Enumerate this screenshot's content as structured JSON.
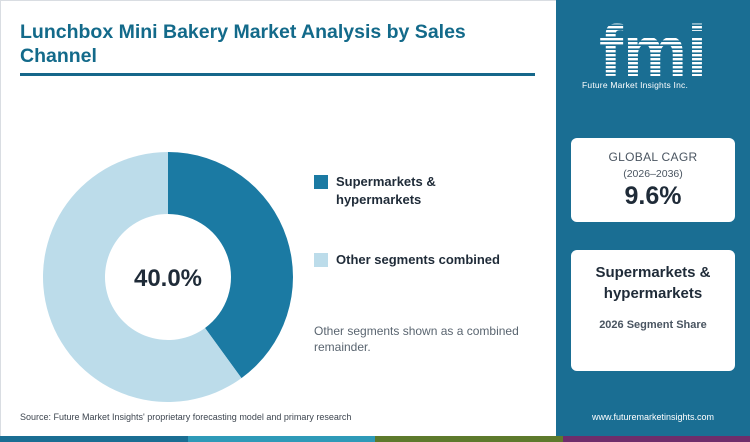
{
  "header": {
    "title": "Lunchbox Mini Bakery Market Analysis by Sales Channel"
  },
  "chart_data": {
    "type": "pie",
    "categories": [
      "Supermarkets & hypermarkets",
      "Other segments combined"
    ],
    "values": [
      40.0,
      60.0
    ],
    "center_label": "40.0%",
    "colors": [
      "#1b7aa3",
      "#bcdcea"
    ],
    "legend_position": "right"
  },
  "legend": {
    "items": [
      {
        "label": "Supermarkets & hypermarkets",
        "color": "#1b7aa3"
      },
      {
        "label": "Other segments combined",
        "color": "#bcdcea"
      }
    ]
  },
  "note": "Other segments shown as a combined remainder.",
  "source": "Source: Future Market Insights' proprietary forecasting model and primary research",
  "brand": {
    "logo_text": "fmi",
    "tagline": "Future Market Insights Inc.",
    "url": "www.futuremarketinsights.com",
    "color": "#1a6e93"
  },
  "cagr_card": {
    "label": "GLOBAL CAGR",
    "period": "(2026–2036)",
    "value": "9.6%"
  },
  "segment_card": {
    "name": "Supermarkets & hypermarkets",
    "caption": "2026 Segment Share"
  },
  "bottom_bar_colors": [
    "#1a6e93",
    "#2e9ab8",
    "#5d7a2c",
    "#6e2d6b"
  ]
}
